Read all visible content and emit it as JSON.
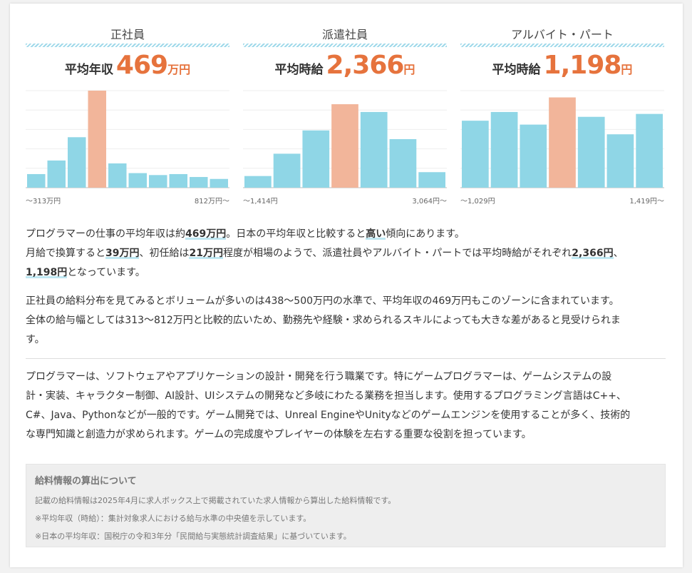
{
  "colors": {
    "bar": "#8fd6e6",
    "highlight": "#f2b59a",
    "accent": "#e6733d"
  },
  "columns": [
    {
      "title": "正社員",
      "metric_label": "平均年収",
      "value": "469",
      "unit": "万円",
      "range_min": "～313万円",
      "range_max": "812万円～",
      "bars": [
        0.14,
        0.28,
        0.52,
        1.0,
        0.25,
        0.15,
        0.13,
        0.14,
        0.11,
        0.09
      ],
      "highlight_index": 3
    },
    {
      "title": "派遣社員",
      "metric_label": "平均時給",
      "value": "2,366",
      "unit": "円",
      "range_min": "～1,414円",
      "range_max": "3,064円～",
      "bars": [
        0.12,
        0.35,
        0.59,
        0.86,
        0.78,
        0.5,
        0.16
      ],
      "highlight_index": 3
    },
    {
      "title": "アルバイト・パート",
      "metric_label": "平均時給",
      "value": "1,198",
      "unit": "円",
      "range_min": "～1,029円",
      "range_max": "1,419円～",
      "bars": [
        0.69,
        0.78,
        0.65,
        0.93,
        0.73,
        0.55,
        0.76
      ],
      "highlight_index": 3
    }
  ],
  "summary": {
    "l1a": "プログラマーの仕事の平均年収は約",
    "l1b": "469万円",
    "l1c": "。日本の平均年収と比較すると",
    "l1d": "高い",
    "l1e": "傾向にあります。",
    "l2a": "月給で換算すると",
    "l2b": "39万円",
    "l2c": "、初任給は",
    "l2d": "21万円",
    "l2e": "程度が相場のようで、派遣社員やアルバイト・パートでは平均時給がそれぞれ",
    "l2f": "2,366円",
    "l2g": "、",
    "l3a": "1,198円",
    "l3b": "となっています。"
  },
  "distribution": {
    "l1": "正社員の給料分布を見てみるとボリュームが多いのは438～500万円の水準で、平均年収の469万円もこのゾーンに含まれています。",
    "l2": "全体の給与幅としては313～812万円と比較的広いため、勤務先や経験・求められるスキルによっても大きな差があると見受けられま",
    "l3": "す。"
  },
  "description": {
    "l1": "プログラマーは、ソフトウェアやアプリケーションの設計・開発を行う職業です。特にゲームプログラマーは、ゲームシステムの設",
    "l2": "計・実装、キャラクター制御、AI設計、UIシステムの開発など多岐にわたる業務を担当します。使用するプログラミング言語はC++、",
    "l3": "C#、Java、Pythonなどが一般的です。ゲーム開発では、Unreal EngineやUnityなどのゲームエンジンを使用することが多く、技術的",
    "l4": "な専門知識と創造力が求められます。ゲームの完成度やプレイヤーの体験を左右する重要な役割を担っています。"
  },
  "note": {
    "title": "給料情報の算出について",
    "l1": "記載の給料情報は2025年4月に求人ボックス上で掲載されていた求人情報から算出した給料情報です。",
    "l2": "※平均年収（時給）：集計対象求人における給与水準の中央値を示しています。",
    "l3": "※日本の平均年収：国税庁の令和3年分「民間給与実態統計調査結果」に基づいています。"
  }
}
